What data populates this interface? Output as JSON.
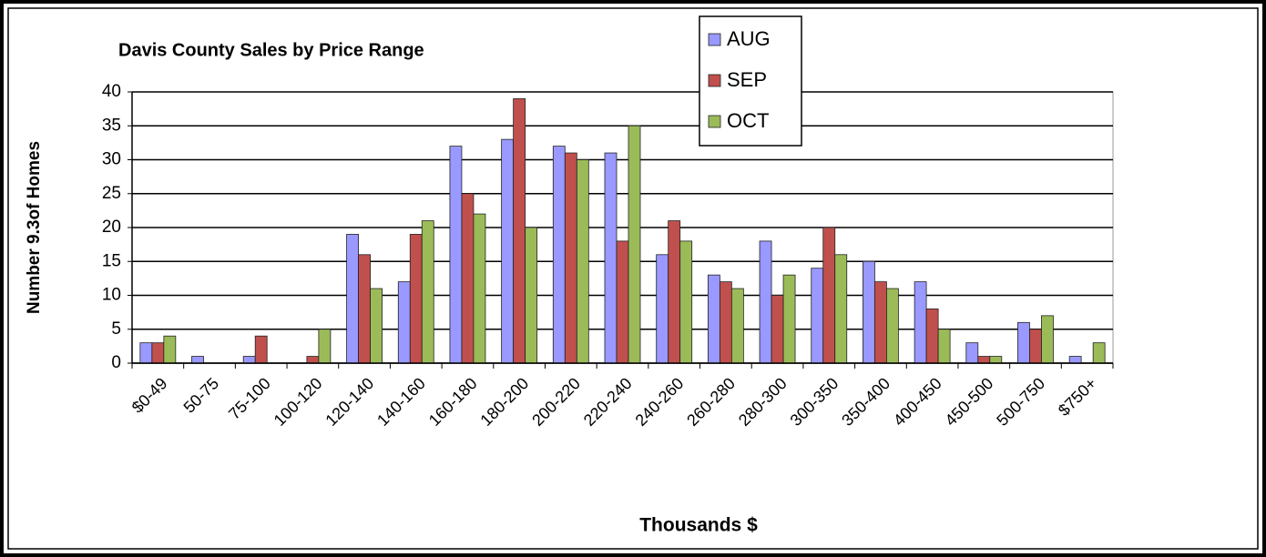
{
  "chart_data": {
    "type": "bar",
    "title": "Davis County Sales by Price Range",
    "x_label": "Thousands $",
    "y_label": "Number 9.3of Homes",
    "categories": [
      "$0-49",
      "50-75",
      "75-100",
      "100-120",
      "120-140",
      "140-160",
      "160-180",
      "180-200",
      "200-220",
      "220-240",
      "240-260",
      "260-280",
      "280-300",
      "300-350",
      "350-400",
      "400-450",
      "450-500",
      "500-750",
      "$750+"
    ],
    "series": [
      {
        "name": "AUG",
        "color": "#9999ff",
        "values": [
          3,
          1,
          1,
          0,
          19,
          12,
          32,
          33,
          32,
          31,
          16,
          13,
          18,
          14,
          15,
          12,
          3,
          6,
          1
        ]
      },
      {
        "name": "SEP",
        "color": "#c0504d",
        "values": [
          3,
          0,
          4,
          1,
          16,
          19,
          25,
          39,
          31,
          18,
          21,
          12,
          10,
          20,
          12,
          8,
          1,
          5,
          0
        ]
      },
      {
        "name": "OCT",
        "color": "#9bbb59",
        "values": [
          4,
          0,
          0,
          5,
          11,
          21,
          22,
          20,
          30,
          35,
          18,
          11,
          13,
          16,
          11,
          5,
          1,
          7,
          3
        ]
      }
    ],
    "ylim": [
      0,
      40
    ],
    "yticks": [
      0,
      5,
      10,
      15,
      20,
      25,
      30,
      35,
      40
    ],
    "grid": true,
    "legend": "top"
  }
}
